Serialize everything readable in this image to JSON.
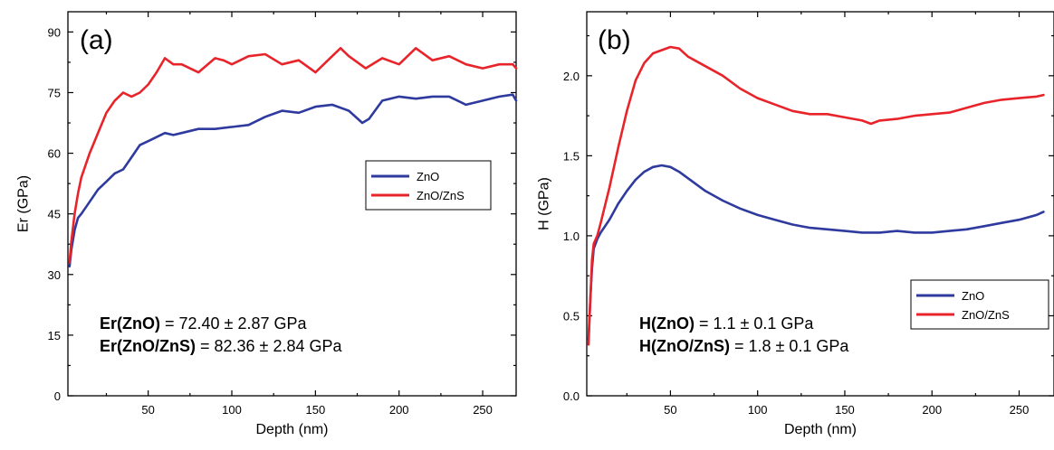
{
  "chart_data": [
    {
      "type": "line",
      "panel_label": "(a)",
      "xlabel": "Depth (nm)",
      "ylabel": "Er (GPa)",
      "xlim": [
        2,
        270
      ],
      "ylim": [
        0,
        95
      ],
      "xticks": [
        50,
        100,
        150,
        200,
        250
      ],
      "yticks": [
        0,
        15,
        30,
        45,
        60,
        75,
        90
      ],
      "legend_position": "center-right",
      "series": [
        {
          "name": "ZnO",
          "color": "#2e3a9e",
          "x": [
            3,
            4,
            6,
            8,
            10,
            15,
            20,
            25,
            30,
            35,
            40,
            45,
            50,
            55,
            60,
            65,
            70,
            80,
            90,
            100,
            110,
            120,
            130,
            140,
            150,
            160,
            170,
            178,
            182,
            190,
            200,
            210,
            220,
            230,
            240,
            250,
            260,
            268,
            270
          ],
          "y": [
            32,
            36,
            41,
            44,
            45,
            48,
            51,
            53,
            55,
            56,
            59,
            62,
            63,
            64,
            65,
            64.5,
            65,
            66,
            66,
            66.5,
            67,
            69,
            70.5,
            70,
            71.5,
            72,
            70.5,
            67.5,
            68.5,
            73,
            74,
            73.5,
            74,
            74,
            72,
            73,
            74,
            74.5,
            73
          ]
        },
        {
          "name": "ZnO/ZnS",
          "color": "#e8242b",
          "x": [
            3,
            4,
            6,
            8,
            10,
            15,
            20,
            25,
            30,
            35,
            40,
            45,
            50,
            55,
            60,
            65,
            70,
            80,
            90,
            95,
            100,
            110,
            120,
            130,
            140,
            150,
            160,
            165,
            170,
            180,
            190,
            200,
            210,
            220,
            230,
            240,
            250,
            260,
            268,
            270
          ],
          "y": [
            33,
            38,
            45,
            50,
            54,
            60,
            65,
            70,
            73,
            75,
            74,
            75,
            77,
            80,
            83.5,
            82,
            82,
            80,
            83.5,
            83,
            82,
            84,
            84.5,
            82,
            83,
            80,
            84,
            86,
            84,
            81,
            83.5,
            82,
            86,
            83,
            84,
            82,
            81,
            82,
            82,
            81
          ]
        }
      ],
      "annotations": [
        {
          "bold": "Er(ZnO)",
          "text": " = 72.40 ± 2.87 GPa"
        },
        {
          "bold": "Er(ZnO/ZnS)",
          "text": " = 82.36 ± 2.84 GPa"
        }
      ]
    },
    {
      "type": "line",
      "panel_label": "(b)",
      "xlabel": "Depth (nm)",
      "ylabel": "H (GPa)",
      "xlim": [
        2,
        270
      ],
      "ylim": [
        0.0,
        2.4
      ],
      "xticks": [
        50,
        100,
        150,
        200,
        250
      ],
      "yticks": [
        0.0,
        0.5,
        1.0,
        1.5,
        2.0
      ],
      "ytick_labels": [
        "0.0",
        "0.5",
        "1.0",
        "1.5",
        "2.0"
      ],
      "legend_position": "bottom-right",
      "series": [
        {
          "name": "ZnO",
          "color": "#2e3a9e",
          "x": [
            3,
            4,
            5,
            6,
            8,
            10,
            15,
            20,
            25,
            30,
            35,
            40,
            45,
            50,
            55,
            60,
            70,
            80,
            90,
            100,
            110,
            120,
            130,
            140,
            150,
            160,
            170,
            180,
            190,
            200,
            210,
            220,
            230,
            240,
            250,
            260,
            264
          ],
          "y": [
            0.35,
            0.6,
            0.8,
            0.92,
            0.98,
            1.02,
            1.1,
            1.2,
            1.28,
            1.35,
            1.4,
            1.43,
            1.44,
            1.43,
            1.4,
            1.36,
            1.28,
            1.22,
            1.17,
            1.13,
            1.1,
            1.07,
            1.05,
            1.04,
            1.03,
            1.02,
            1.02,
            1.03,
            1.02,
            1.02,
            1.03,
            1.04,
            1.06,
            1.08,
            1.1,
            1.13,
            1.15
          ]
        },
        {
          "name": "ZnO/ZnS",
          "color": "#e8242b",
          "x": [
            3,
            4,
            5,
            6,
            8,
            10,
            15,
            20,
            25,
            30,
            35,
            40,
            45,
            50,
            55,
            60,
            70,
            80,
            90,
            100,
            110,
            120,
            130,
            140,
            150,
            160,
            165,
            170,
            180,
            190,
            200,
            210,
            220,
            230,
            240,
            250,
            260,
            264
          ],
          "y": [
            0.32,
            0.6,
            0.85,
            0.95,
            1.0,
            1.08,
            1.3,
            1.55,
            1.78,
            1.97,
            2.08,
            2.14,
            2.16,
            2.18,
            2.17,
            2.12,
            2.06,
            2.0,
            1.92,
            1.86,
            1.82,
            1.78,
            1.76,
            1.76,
            1.74,
            1.72,
            1.7,
            1.72,
            1.73,
            1.75,
            1.76,
            1.77,
            1.8,
            1.83,
            1.85,
            1.86,
            1.87,
            1.88
          ]
        }
      ],
      "annotations": [
        {
          "bold": "H(ZnO)",
          "text": " = 1.1 ± 0.1 GPa"
        },
        {
          "bold": "H(ZnO/ZnS)",
          "text": " = 1.8 ± 0.1 GPa"
        }
      ]
    }
  ]
}
